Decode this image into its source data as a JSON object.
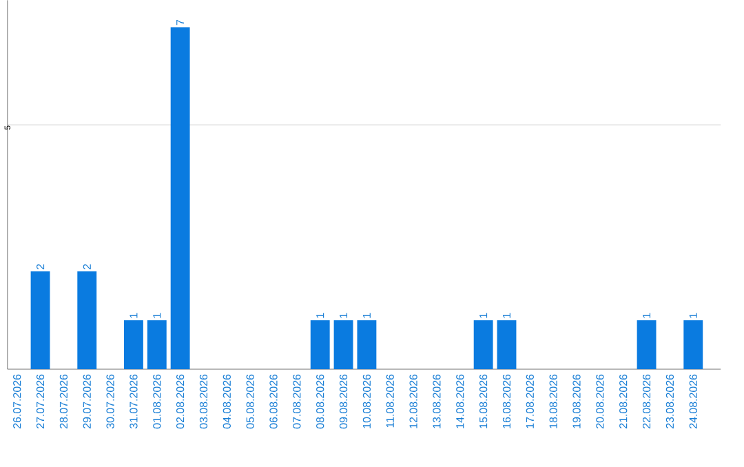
{
  "chart_data": {
    "type": "bar",
    "categories": [
      "26.07.2026",
      "27.07.2026",
      "28.07.2026",
      "29.07.2026",
      "30.07.2026",
      "31.07.2026",
      "01.08.2026",
      "02.08.2026",
      "03.08.2026",
      "04.08.2026",
      "05.08.2026",
      "06.08.2026",
      "07.08.2026",
      "08.08.2026",
      "09.08.2026",
      "10.08.2026",
      "11.08.2026",
      "12.08.2026",
      "13.08.2026",
      "14.08.2026",
      "15.08.2026",
      "16.08.2026",
      "17.08.2026",
      "18.08.2026",
      "19.08.2026",
      "20.08.2026",
      "21.08.2026",
      "22.08.2026",
      "23.08.2026",
      "24.08.2026"
    ],
    "values": [
      0,
      2,
      0,
      2,
      0,
      1,
      1,
      7,
      0,
      0,
      0,
      0,
      0,
      1,
      1,
      1,
      0,
      0,
      0,
      0,
      1,
      1,
      0,
      0,
      0,
      0,
      0,
      1,
      0,
      1
    ],
    "value_labels": [
      null,
      "2",
      null,
      "2",
      null,
      "1",
      "1",
      "7",
      null,
      null,
      null,
      null,
      null,
      "1",
      "1",
      "1",
      null,
      null,
      null,
      null,
      "1",
      "1",
      null,
      null,
      null,
      null,
      null,
      "1",
      null,
      "1"
    ],
    "color": "#0a7be0",
    "ylim": [
      0,
      7.55
    ],
    "yticks": [
      5
    ],
    "grid": "y"
  }
}
